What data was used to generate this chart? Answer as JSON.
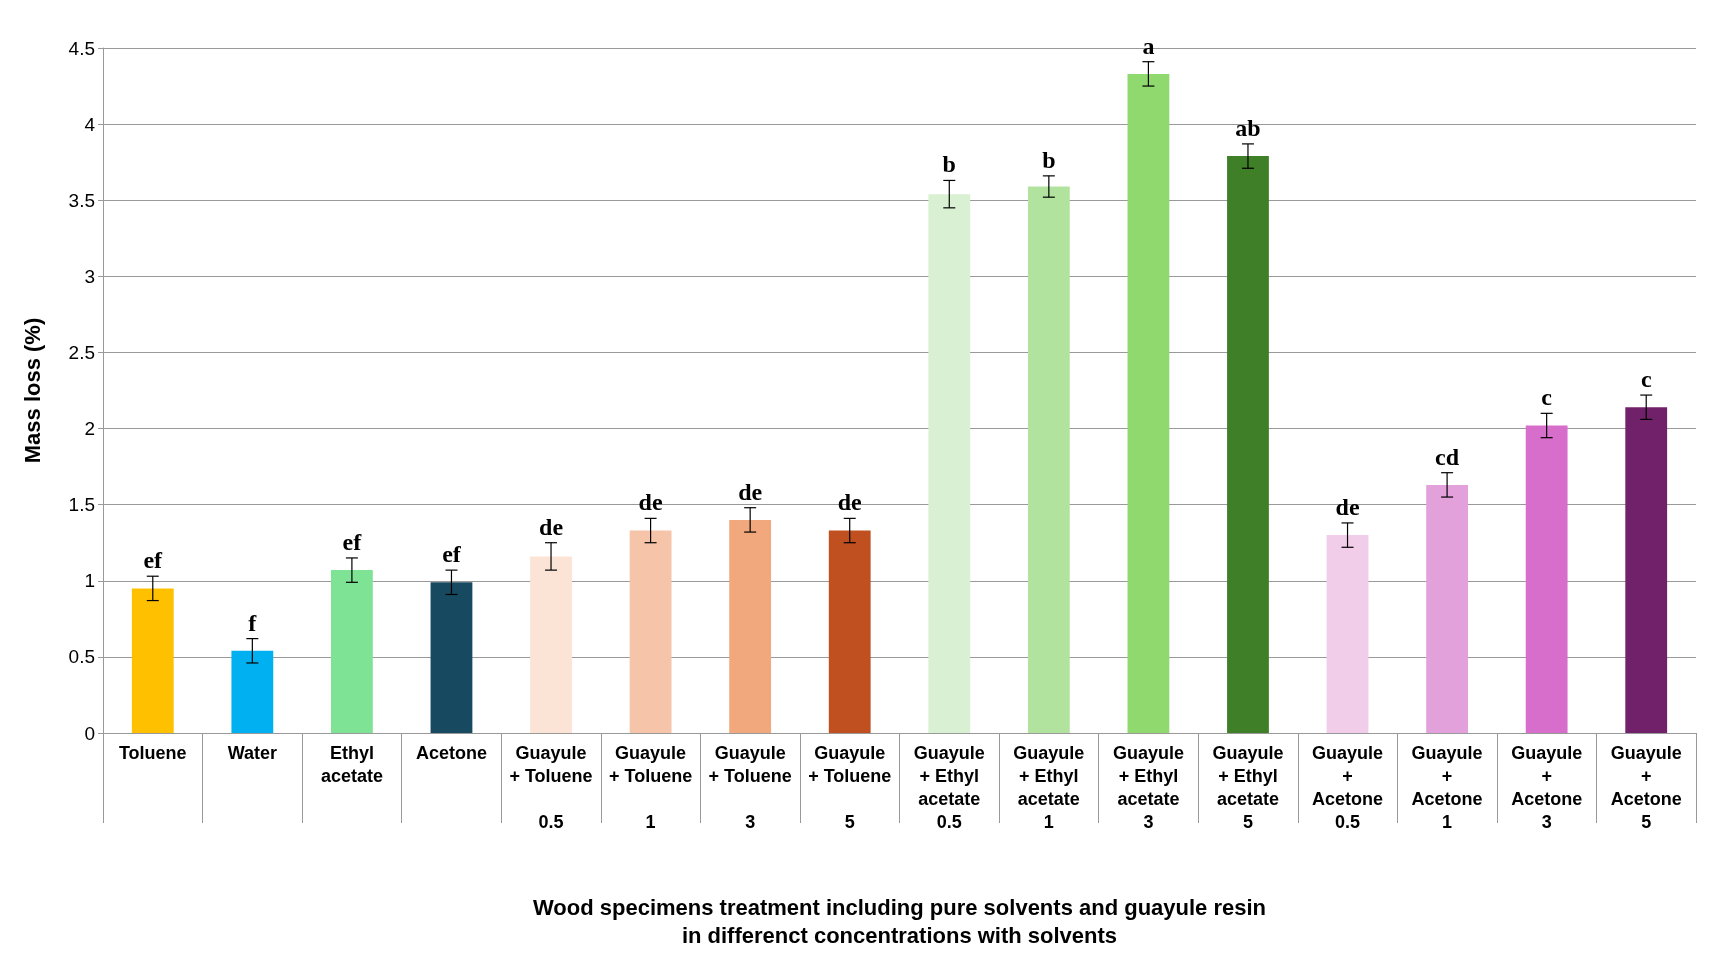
{
  "chart_data": {
    "type": "bar",
    "xlabel": "Wood specimens treatment including pure solvents and guayule resin\nin differenct concentrations with solvents",
    "ylabel": "Mass loss (%)",
    "categories": [
      "Toluene",
      "Water",
      "Ethyl\nacetate",
      "Acetone",
      "Guayule\n+ Toluene\n\n0.5",
      "Guayule\n+ Toluene\n\n1",
      "Guayule\n+ Toluene\n\n3",
      "Guayule\n+ Toluene\n\n5",
      "Guayule\n+ Ethyl\nacetate\n0.5",
      "Guayule\n+ Ethyl\nacetate\n1",
      "Guayule\n+ Ethyl\nacetate\n3",
      "Guayule\n+ Ethyl\nacetate\n5",
      "Guayule\n+\nAcetone\n0.5",
      "Guayule\n+\nAcetone\n1",
      "Guayule\n+\nAcetone\n3",
      "Guayule\n+\nAcetone\n5"
    ],
    "values": [
      0.95,
      0.54,
      1.07,
      0.99,
      1.16,
      1.33,
      1.4,
      1.33,
      3.54,
      3.59,
      4.33,
      3.79,
      1.3,
      1.63,
      2.02,
      2.14
    ],
    "errors": [
      0.08,
      0.08,
      0.08,
      0.08,
      0.09,
      0.08,
      0.08,
      0.08,
      0.09,
      0.07,
      0.08,
      0.08,
      0.08,
      0.08,
      0.08,
      0.08
    ],
    "value_labels": [
      "ef",
      "f",
      "ef",
      "ef",
      "de",
      "de",
      "de",
      "de",
      "b",
      "b",
      "a",
      "ab",
      "de",
      "cd",
      "c",
      "c"
    ],
    "colors": [
      "#ffc000",
      "#00b0f0",
      "#7fe396",
      "#174a60",
      "#fbe3d6",
      "#f5c4a9",
      "#f0a87c",
      "#c0501f",
      "#daf0d2",
      "#b2e39e",
      "#8fd96e",
      "#3f7f27",
      "#f2cdea",
      "#e3a1dc",
      "#d86ecc",
      "#71206a"
    ],
    "ylim": [
      0,
      4.5
    ],
    "yticks": [
      0,
      0.5,
      1,
      1.5,
      2,
      2.5,
      3,
      3.5,
      4,
      4.5
    ],
    "grid": "y"
  }
}
